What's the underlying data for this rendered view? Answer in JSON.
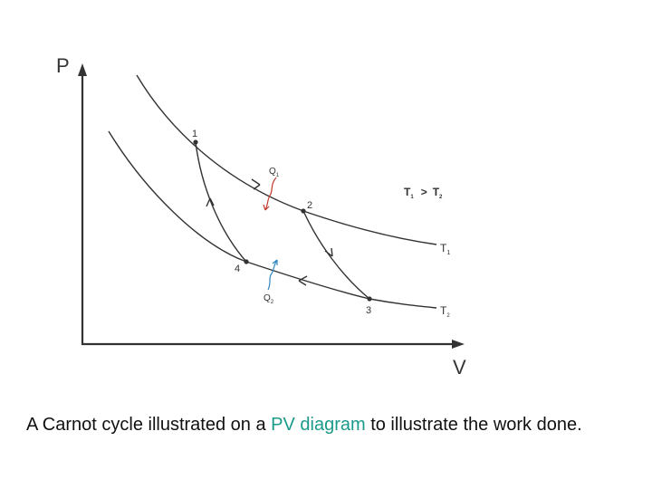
{
  "diagram": {
    "axis_y_label": "P",
    "axis_x_label": "V",
    "points": [
      "1",
      "2",
      "3",
      "4"
    ],
    "heat_in": {
      "symbol": "Q",
      "subscript": "1"
    },
    "heat_out": {
      "symbol": "Q",
      "subscript": "2"
    },
    "relation": {
      "left": "T",
      "left_sub": "1",
      "op": ">",
      "right": "T",
      "right_sub": "2"
    },
    "curves": [
      {
        "name": "T",
        "sub": "1"
      },
      {
        "name": "T",
        "sub": "2"
      }
    ],
    "colors": {
      "curve": "#333333",
      "heat_in": "#c0392b",
      "heat_out": "#2e86c1"
    }
  },
  "caption": {
    "before": "A Carnot cycle illustrated on a ",
    "link": "PV diagram",
    "after": " to illustrate the work done."
  }
}
